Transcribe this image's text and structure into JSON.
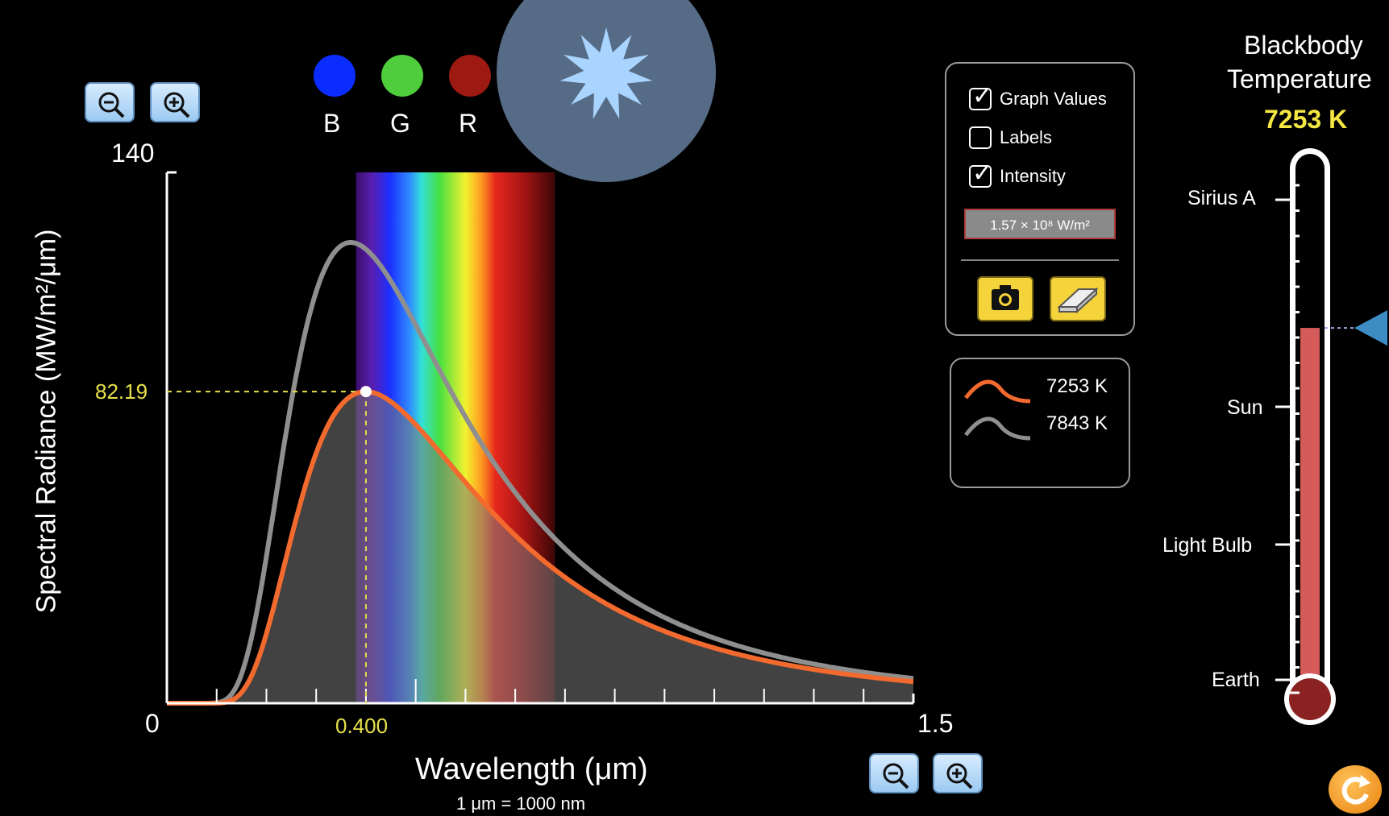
{
  "graph": {
    "y_axis_title": "Spectral Radiance (MW/m²/μm)",
    "y_max_label": "140",
    "y_min_label": "0",
    "x_max_label": "1.5",
    "x_axis_title": "Wavelength (μm)",
    "x_unit_note": "1 μm  =  1000 nm",
    "readout_y": "82.19",
    "readout_x": "0.400",
    "readout_color": "#e6e04a"
  },
  "chart_data": {
    "type": "line",
    "xlim": [
      0,
      1.5
    ],
    "ylim": [
      0,
      140
    ],
    "xlabel": "Wavelength (μm)",
    "ylabel": "Spectral Radiance (MW/m²/μm)",
    "series": [
      {
        "name": "7253 K",
        "temperature_k": 7253,
        "color": "#f26a2e",
        "filled": true
      },
      {
        "name": "7843 K",
        "temperature_k": 7843,
        "color": "#8f8f8f",
        "filled": false
      }
    ],
    "marker": {
      "x": 0.4,
      "y": 82.19
    },
    "visible_band": {
      "x_range": [
        0.38,
        0.78
      ]
    }
  },
  "color_indicators": [
    {
      "label": "B",
      "color": "#0a2cff"
    },
    {
      "label": "G",
      "color": "#4fcd3c"
    },
    {
      "label": "R",
      "color": "#9d1a12"
    }
  ],
  "star": {
    "disc_color": "#566b85",
    "star_color": "#a8d4ff"
  },
  "options": {
    "graph_values": {
      "label": "Graph Values",
      "checked": true
    },
    "labels": {
      "label": "Labels",
      "checked": false
    },
    "intensity": {
      "label": "Intensity",
      "checked": true
    },
    "intensity_readout": "1.57 × 10⁸ W/m²",
    "camera_icon": "camera-icon",
    "eraser_icon": "eraser-icon"
  },
  "legend": [
    {
      "label": "7253 K",
      "color": "#f26a2e"
    },
    {
      "label": "7843 K",
      "color": "#8f8f8f"
    }
  ],
  "thermometer": {
    "title_line1": "Blackbody",
    "title_line2": "Temperature",
    "value": "7253 K",
    "value_color": "#f5e642",
    "level_fraction": 0.69,
    "markers": [
      "Sirius A",
      "Sun",
      "Light Bulb",
      "Earth"
    ],
    "fluid_color": "#d55b5b"
  },
  "reset_icon": "reset-icon"
}
